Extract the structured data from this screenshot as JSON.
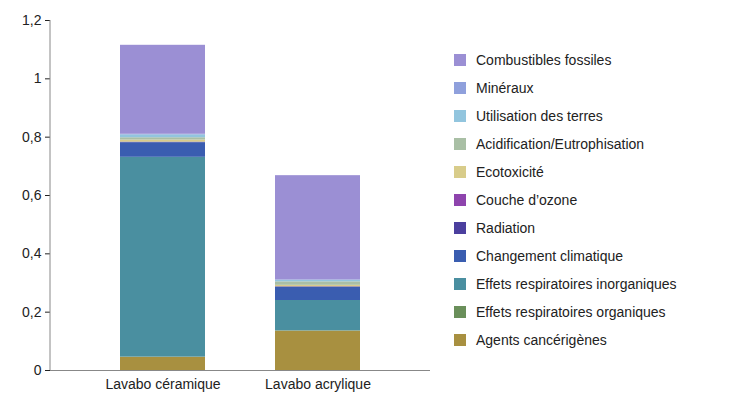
{
  "chart_data": {
    "type": "bar",
    "stacked": true,
    "grid": false,
    "legend": "right",
    "categories": [
      "Lavabo céramique",
      "Lavabo acrylique"
    ],
    "ylim": [
      0,
      1.2
    ],
    "yticks": [
      0,
      {
        "value": 0.2,
        "label": "0,2"
      },
      {
        "value": 0.4,
        "label": "0,4"
      },
      {
        "value": 0.6,
        "label": "0,6"
      },
      {
        "value": 0.8,
        "label": "0,8"
      },
      1,
      {
        "value": 1.2,
        "label": "1,2"
      }
    ],
    "series": [
      {
        "name": "Combustibles fossiles",
        "color": "#9b8fd4",
        "values": [
          0.305,
          0.357
        ]
      },
      {
        "name": "Minéraux",
        "color": "#8fa0dc",
        "values": [
          0.002,
          0.002
        ]
      },
      {
        "name": "Utilisation des terres",
        "color": "#92c5de",
        "values": [
          0.01,
          0.005
        ]
      },
      {
        "name": "Acidification/Eutrophisation",
        "color": "#a9bfa5",
        "values": [
          0.008,
          0.012
        ]
      },
      {
        "name": "Ecotoxicité",
        "color": "#d8cc8a",
        "values": [
          0.007,
          0.005
        ]
      },
      {
        "name": "Couche d’ozone",
        "color": "#8e44ad",
        "values": [
          0,
          0
        ]
      },
      {
        "name": "Radiation",
        "color": "#4b3f9e",
        "values": [
          0.002,
          0.002
        ]
      },
      {
        "name": "Changement climatique",
        "color": "#3a5db0",
        "values": [
          0.05,
          0.045
        ]
      },
      {
        "name": "Effets respiratoires inorganiques",
        "color": "#4a8fa0",
        "values": [
          0.685,
          0.104
        ]
      },
      {
        "name": "Effets respiratoires organiques",
        "color": "#6a8f5a",
        "values": [
          0.001,
          0.001
        ]
      },
      {
        "name": "Agents cancérigènes",
        "color": "#a89040",
        "values": [
          0.045,
          0.135
        ]
      }
    ]
  }
}
